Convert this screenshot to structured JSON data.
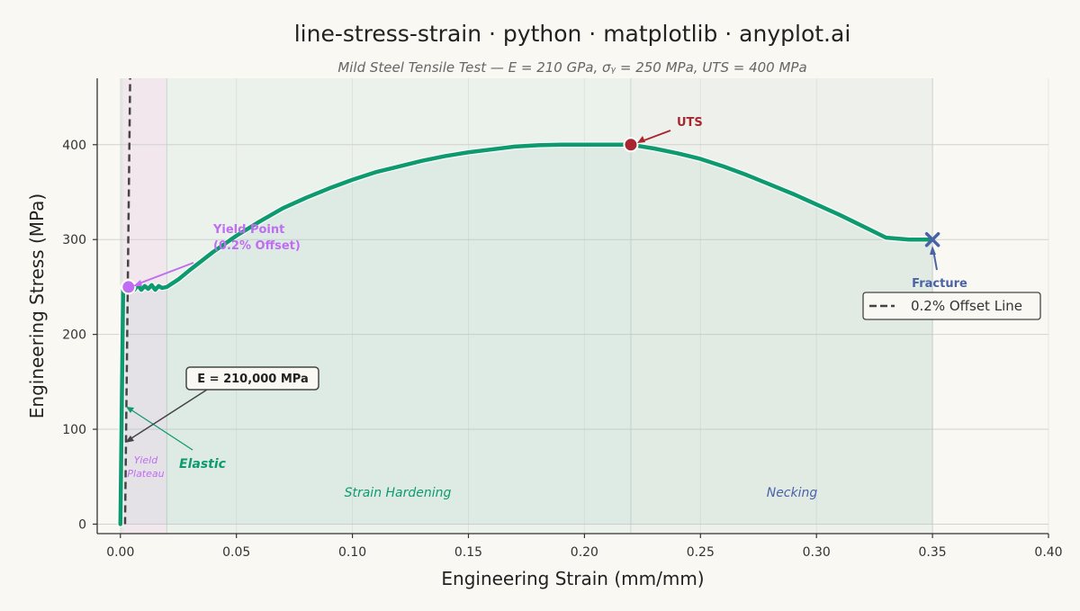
{
  "colors": {
    "background": "#FAF8F2",
    "curve": "#0E9A6F",
    "elastic_region": "#DCE4E1",
    "yield_region": "#EFE2EB",
    "hardening_region": "#E6EFE8",
    "necking_region": "#EBEFE9",
    "yield": "#BF6DF2",
    "uts": "#A8272F",
    "fracture": "#4963A6",
    "offset_line": "#444444",
    "grid": "#CCCCCC",
    "text": "#222222",
    "subtitle": "#666666"
  },
  "chart_data": {
    "type": "line",
    "title": "line-stress-strain · python · matplotlib · anyplot.ai",
    "subtitle": "Mild Steel Tensile Test — E = 210 GPa, σᵧ = 250 MPa, UTS = 400 MPa",
    "xlabel": "Engineering Strain (mm/mm)",
    "ylabel": "Engineering Stress (MPa)",
    "xlim": [
      -0.01,
      0.4
    ],
    "ylim": [
      -10,
      470
    ],
    "xticks": [
      0.0,
      0.05,
      0.1,
      0.15,
      0.2,
      0.25,
      0.3,
      0.35,
      0.4
    ],
    "xtick_labels": [
      "0.00",
      "0.05",
      "0.10",
      "0.15",
      "0.20",
      "0.25",
      "0.30",
      "0.35",
      "0.40"
    ],
    "yticks": [
      0,
      100,
      200,
      300,
      400
    ],
    "ytick_labels": [
      "0",
      "100",
      "200",
      "300",
      "400"
    ],
    "grid": true,
    "series": [
      {
        "x": [
          0.0,
          0.0012,
          0.0025,
          0.003,
          0.0045,
          0.006,
          0.0075,
          0.009,
          0.0105,
          0.012,
          0.0135,
          0.015,
          0.0165,
          0.018,
          0.02,
          0.025,
          0.03,
          0.04,
          0.05,
          0.06,
          0.07,
          0.08,
          0.09,
          0.1,
          0.11,
          0.12,
          0.13,
          0.14,
          0.15,
          0.16,
          0.17,
          0.18,
          0.19,
          0.2,
          0.21,
          0.22,
          0.23,
          0.24,
          0.25,
          0.26,
          0.27,
          0.28,
          0.29,
          0.3,
          0.31,
          0.32,
          0.33,
          0.34,
          0.35
        ],
        "y": [
          0,
          250,
          251,
          248,
          252,
          247,
          252,
          247,
          251,
          248,
          252,
          247,
          251,
          249,
          250,
          258,
          268,
          287,
          304,
          319,
          333,
          344,
          354,
          363,
          371,
          377,
          383,
          388,
          392,
          395,
          398,
          399.5,
          400,
          400,
          400,
          400,
          396,
          391,
          385,
          377,
          368,
          358,
          348,
          337,
          326,
          314,
          302,
          300,
          300
        ]
      }
    ],
    "offset_line": {
      "label": "0.2% Offset Line",
      "x": [
        0.002,
        0.0042
      ],
      "y": [
        0,
        470
      ]
    },
    "regions": [
      {
        "name": "Elastic",
        "x": [
          0.0,
          0.0012
        ]
      },
      {
        "name": "Yield Plateau",
        "x": [
          0.0012,
          0.02
        ]
      },
      {
        "name": "Strain Hardening",
        "x": [
          0.02,
          0.22
        ]
      },
      {
        "name": "Necking",
        "x": [
          0.22,
          0.35
        ]
      }
    ],
    "region_labels": {
      "elastic": "Elastic",
      "yield_plateau_line1": "Yield",
      "yield_plateau_line2": "Plateau",
      "strain_hardening": "Strain Hardening",
      "necking": "Necking"
    },
    "points": {
      "yield": {
        "x": 0.0035,
        "y": 250
      },
      "uts": {
        "x": 0.22,
        "y": 400
      },
      "fracture": {
        "x": 0.35,
        "y": 300
      }
    },
    "annotations": {
      "yield_line1": "Yield Point",
      "yield_line2": "(0.2% Offset)",
      "uts": "UTS",
      "fracture": "Fracture",
      "modulus": "E = 210,000 MPa"
    },
    "legend": {
      "position": "right",
      "entries": [
        "0.2% Offset Line"
      ]
    }
  }
}
